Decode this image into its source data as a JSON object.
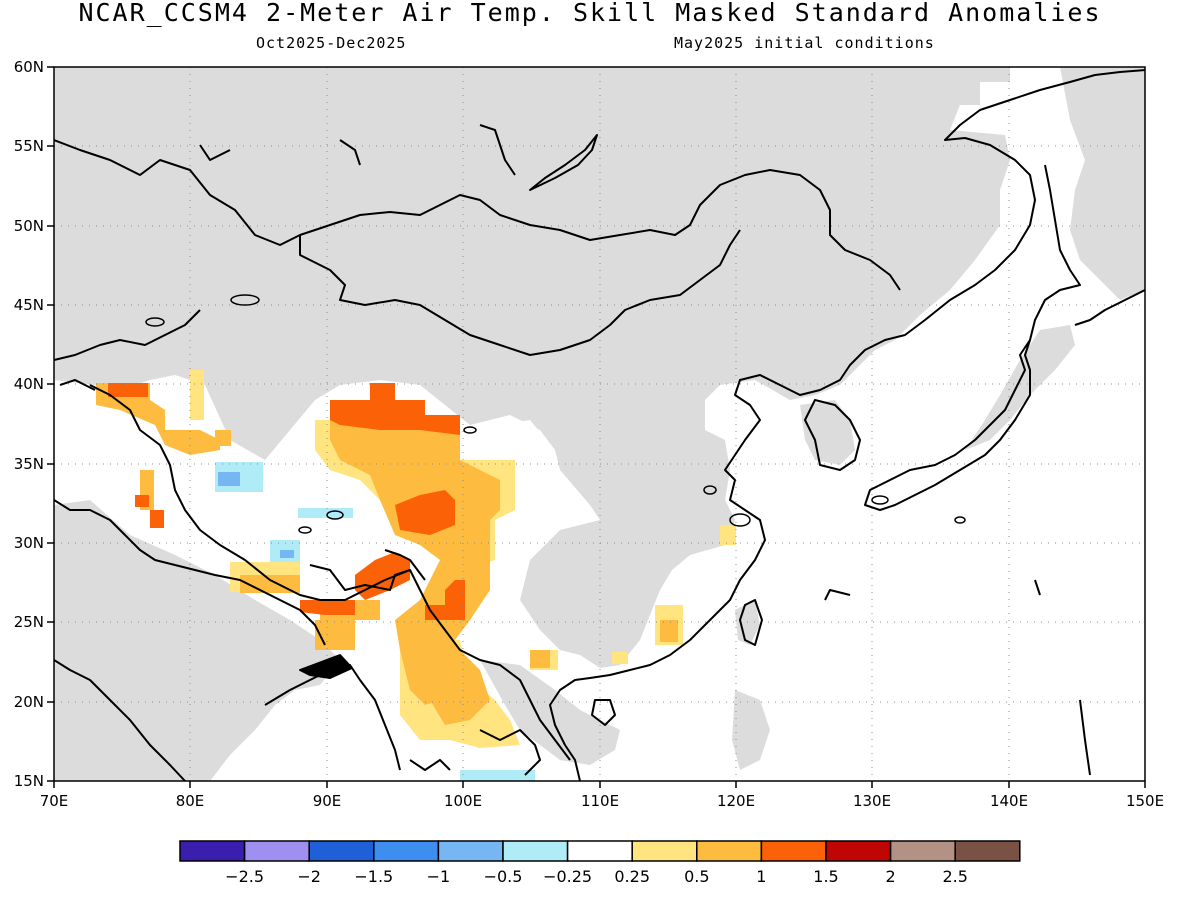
{
  "title": "NCAR_CCSM4 2-Meter Air Temp. Skill Masked Standard Anomalies",
  "subtitle_left": "Oct2025-Dec2025",
  "subtitle_right": "May2025 initial conditions",
  "map": {
    "lon_range": [
      70,
      150
    ],
    "lat_range": [
      15,
      60
    ],
    "lon_ticks": [
      "70E",
      "80E",
      "90E",
      "100E",
      "110E",
      "120E",
      "130E",
      "140E",
      "150E"
    ],
    "lat_ticks": [
      "15N",
      "20N",
      "25N",
      "30N",
      "35N",
      "40N",
      "45N",
      "50N",
      "55N",
      "60N"
    ],
    "grid": true,
    "land_masked_color": "#dcdcdc",
    "ocean_color": "#ffffff"
  },
  "colorbar": {
    "colors": [
      "#3a1fae",
      "#9f8ff0",
      "#1f5fd8",
      "#3d8ef0",
      "#75b6f3",
      "#b0ebf8",
      "#ffffff",
      "#ffe480",
      "#fdbb3f",
      "#fb6107",
      "#c00505",
      "#b49185",
      "#7a5145"
    ],
    "labels": [
      "-2.5",
      "-2",
      "-1.5",
      "-1",
      "-0.5",
      "-0.25",
      "0.25",
      "0.5",
      "1",
      "1.5",
      "2",
      "2.5"
    ]
  }
}
